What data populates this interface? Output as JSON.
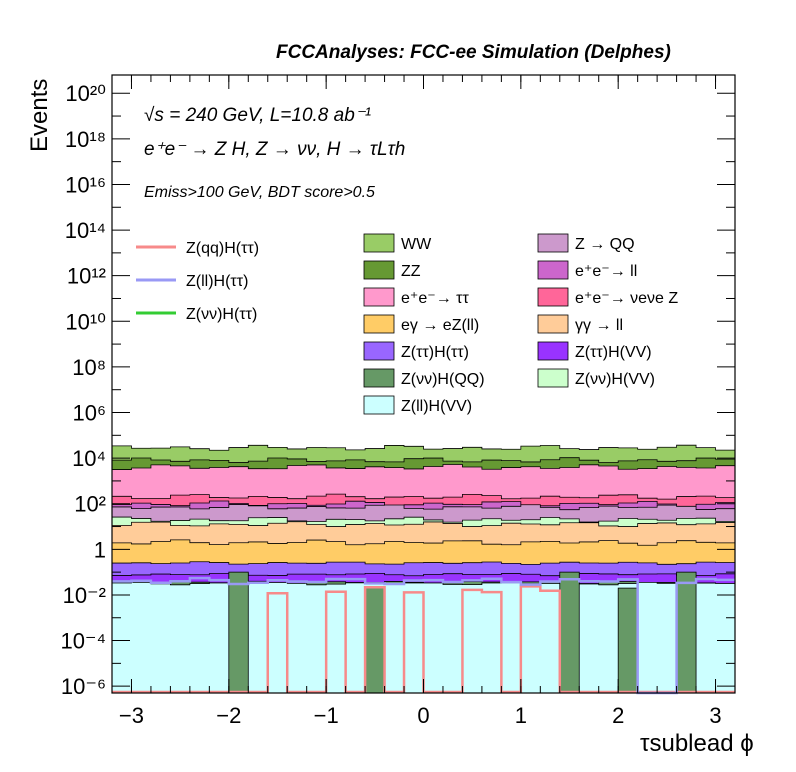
{
  "chart_data": {
    "type": "bar",
    "title": "FCCAnalyses: FCC-ee Simulation (Delphes)",
    "annotations": [
      "√s = 240 GeV, L=10.8 ab⁻¹",
      "e⁺e⁻ → Z H, Z → νν, H → τLτh",
      "Emiss>100 GeV, BDT score>0.5"
    ],
    "xlabel": "τsublead ϕ",
    "ylabel": "Events",
    "xlim": [
      -3.2,
      3.2
    ],
    "ylim_log10": [
      -6.3,
      20.8
    ],
    "log_y": true,
    "grid": false,
    "legend_position": "top-right",
    "x_tick_labels": [
      "−3",
      "−2",
      "−1",
      "0",
      "1",
      "2",
      "3"
    ],
    "y_tick_labels": [
      "10⁻⁶",
      "10⁻⁴",
      "10⁻²",
      "1",
      "10²",
      "10⁴",
      "10⁶",
      "10⁸",
      "10¹⁰",
      "10¹²",
      "10¹⁴",
      "10¹⁶",
      "10¹⁸",
      "10²⁰"
    ],
    "n_bins": 32,
    "stack_order_bottom_to_top": [
      "Z(ll)H(VV)",
      "Z(νν)H(QQ)",
      "Z(ττ)H(VV)",
      "Z(ττ)H(ττ)",
      "eγ → eZ(ll)",
      "γγ → ll",
      "Z(νν)H(VV)",
      "Z → QQ",
      "e⁺e⁻→ ll",
      "e⁺e⁻→ νeνe Z",
      "e⁺e⁻→ ττ",
      "ZZ",
      "WW"
    ],
    "stack_cumulative_log10_typical": [
      -1.5,
      -1.45,
      -1.1,
      -0.6,
      0.3,
      1.1,
      1.3,
      1.85,
      2.0,
      2.3,
      3.6,
      3.9,
      4.45
    ],
    "signal_lines": [
      {
        "name": "Z(qq)H(ττ)",
        "color": "#f78a8a",
        "value_log10": -1.8,
        "nonzero_bins": [
          8,
          11,
          13,
          15,
          18,
          19,
          21,
          22
        ]
      },
      {
        "name": "Z(ll)H(ττ)",
        "color": "#9999f5",
        "typical_log10": -1.4
      },
      {
        "name": "Z(νν)H(ττ)",
        "color": "#33cc33",
        "typical_log10": null
      }
    ]
  },
  "legend": {
    "lines": [
      {
        "label": "Z(qq)H(ττ)",
        "color": "#f78a8a"
      },
      {
        "label": "Z(ll)H(ττ)",
        "color": "#9999f5"
      },
      {
        "label": "Z(νν)H(ττ)",
        "color": "#33cc33"
      }
    ],
    "boxes": [
      {
        "label": "WW",
        "color": "#99cc66"
      },
      {
        "label": "Z → QQ",
        "color": "#cc99cc"
      },
      {
        "label": "ZZ",
        "color": "#669933"
      },
      {
        "label": "e⁺e⁻→ ll",
        "color": "#cc66cc"
      },
      {
        "label": "e⁺e⁻→ ττ",
        "color": "#ff99cc"
      },
      {
        "label": "e⁺e⁻→ νeνe Z",
        "color": "#ff6699"
      },
      {
        "label": "eγ → eZ(ll)",
        "color": "#ffcc66"
      },
      {
        "label": "γγ → ll",
        "color": "#ffcc99"
      },
      {
        "label": "Z(ττ)H(ττ)",
        "color": "#9966ff"
      },
      {
        "label": "Z(ττ)H(VV)",
        "color": "#9933ff"
      },
      {
        "label": "Z(νν)H(QQ)",
        "color": "#669966"
      },
      {
        "label": "Z(νν)H(VV)",
        "color": "#ccffcc"
      },
      {
        "label": "Z(ll)H(VV)",
        "color": "#ccffff"
      }
    ]
  }
}
